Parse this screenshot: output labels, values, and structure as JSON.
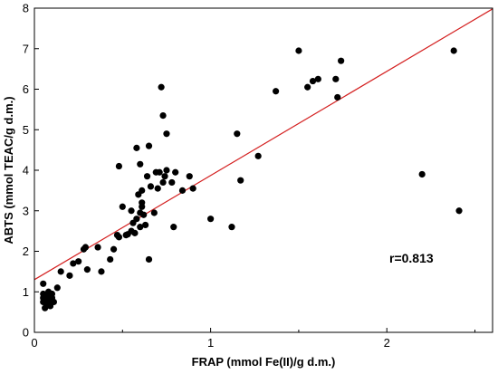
{
  "chart_data": {
    "type": "scatter",
    "xlabel": "FRAP (mmol Fe(II)/g d.m.)",
    "ylabel": "ABTS (mmol TEAC/g d.m.)",
    "xlim": [
      0,
      2.6
    ],
    "ylim": [
      0,
      8
    ],
    "xticks": [
      0,
      1,
      2
    ],
    "yticks": [
      0,
      1,
      2,
      3,
      4,
      5,
      6,
      7,
      8
    ],
    "grid": false,
    "annotation": "r=0.813",
    "marker_color": "#000000",
    "fit_line_color": "#d42020",
    "fit_line": {
      "intercept": 1.3,
      "slope": 2.57
    },
    "points": [
      {
        "x": 0.05,
        "y": 1.2
      },
      {
        "x": 0.05,
        "y": 0.95
      },
      {
        "x": 0.05,
        "y": 0.85
      },
      {
        "x": 0.05,
        "y": 0.75
      },
      {
        "x": 0.06,
        "y": 0.6
      },
      {
        "x": 0.07,
        "y": 0.8
      },
      {
        "x": 0.07,
        "y": 0.7
      },
      {
        "x": 0.08,
        "y": 1.0
      },
      {
        "x": 0.08,
        "y": 0.9
      },
      {
        "x": 0.09,
        "y": 0.78
      },
      {
        "x": 0.09,
        "y": 0.65
      },
      {
        "x": 0.1,
        "y": 0.95
      },
      {
        "x": 0.1,
        "y": 0.85
      },
      {
        "x": 0.11,
        "y": 0.75
      },
      {
        "x": 0.13,
        "y": 1.1
      },
      {
        "x": 0.15,
        "y": 1.5
      },
      {
        "x": 0.2,
        "y": 1.4
      },
      {
        "x": 0.22,
        "y": 1.7
      },
      {
        "x": 0.25,
        "y": 1.75
      },
      {
        "x": 0.28,
        "y": 2.05
      },
      {
        "x": 0.29,
        "y": 2.1
      },
      {
        "x": 0.3,
        "y": 1.55
      },
      {
        "x": 0.36,
        "y": 2.1
      },
      {
        "x": 0.38,
        "y": 1.5
      },
      {
        "x": 0.43,
        "y": 1.8
      },
      {
        "x": 0.45,
        "y": 2.05
      },
      {
        "x": 0.47,
        "y": 2.4
      },
      {
        "x": 0.48,
        "y": 2.35
      },
      {
        "x": 0.48,
        "y": 4.1
      },
      {
        "x": 0.5,
        "y": 3.1
      },
      {
        "x": 0.52,
        "y": 2.4
      },
      {
        "x": 0.53,
        "y": 2.42
      },
      {
        "x": 0.55,
        "y": 2.5
      },
      {
        "x": 0.55,
        "y": 3.0
      },
      {
        "x": 0.56,
        "y": 2.7
      },
      {
        "x": 0.57,
        "y": 2.45
      },
      {
        "x": 0.58,
        "y": 4.55
      },
      {
        "x": 0.58,
        "y": 2.8
      },
      {
        "x": 0.59,
        "y": 3.4
      },
      {
        "x": 0.6,
        "y": 4.15
      },
      {
        "x": 0.6,
        "y": 2.6
      },
      {
        "x": 0.6,
        "y": 2.95
      },
      {
        "x": 0.61,
        "y": 3.2
      },
      {
        "x": 0.61,
        "y": 3.5
      },
      {
        "x": 0.61,
        "y": 3.1
      },
      {
        "x": 0.62,
        "y": 2.9
      },
      {
        "x": 0.63,
        "y": 2.65
      },
      {
        "x": 0.64,
        "y": 3.85
      },
      {
        "x": 0.65,
        "y": 4.6
      },
      {
        "x": 0.65,
        "y": 1.8
      },
      {
        "x": 0.66,
        "y": 3.6
      },
      {
        "x": 0.68,
        "y": 2.95
      },
      {
        "x": 0.69,
        "y": 3.95
      },
      {
        "x": 0.7,
        "y": 3.55
      },
      {
        "x": 0.71,
        "y": 3.95
      },
      {
        "x": 0.72,
        "y": 6.05
      },
      {
        "x": 0.73,
        "y": 5.35
      },
      {
        "x": 0.73,
        "y": 3.7
      },
      {
        "x": 0.74,
        "y": 3.85
      },
      {
        "x": 0.75,
        "y": 4.0
      },
      {
        "x": 0.75,
        "y": 4.9
      },
      {
        "x": 0.78,
        "y": 3.7
      },
      {
        "x": 0.79,
        "y": 2.6
      },
      {
        "x": 0.8,
        "y": 3.95
      },
      {
        "x": 0.84,
        "y": 3.5
      },
      {
        "x": 0.88,
        "y": 3.85
      },
      {
        "x": 0.9,
        "y": 3.55
      },
      {
        "x": 1.0,
        "y": 2.8
      },
      {
        "x": 1.12,
        "y": 2.6
      },
      {
        "x": 1.15,
        "y": 4.9
      },
      {
        "x": 1.17,
        "y": 3.75
      },
      {
        "x": 1.27,
        "y": 4.35
      },
      {
        "x": 1.37,
        "y": 5.95
      },
      {
        "x": 1.5,
        "y": 6.95
      },
      {
        "x": 1.55,
        "y": 6.05
      },
      {
        "x": 1.58,
        "y": 6.2
      },
      {
        "x": 1.61,
        "y": 6.25
      },
      {
        "x": 1.71,
        "y": 6.25
      },
      {
        "x": 1.72,
        "y": 5.8
      },
      {
        "x": 1.74,
        "y": 6.7
      },
      {
        "x": 2.2,
        "y": 3.9
      },
      {
        "x": 2.38,
        "y": 6.95
      },
      {
        "x": 2.41,
        "y": 3.0
      }
    ]
  }
}
